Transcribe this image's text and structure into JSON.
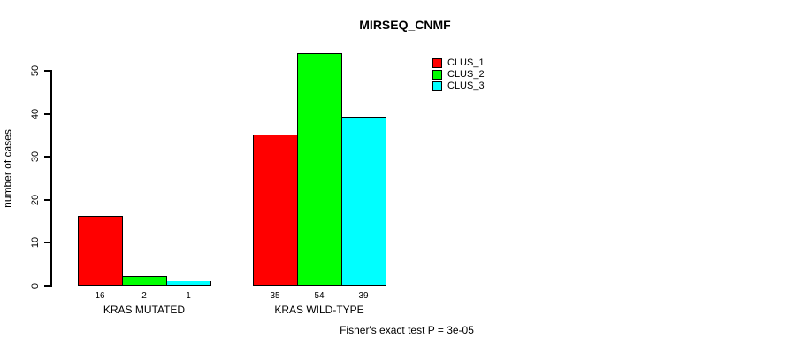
{
  "background": "#ffffff",
  "chart_data": {
    "type": "bar",
    "title": "MIRSEQ_CNMF",
    "xlabel": "",
    "ylabel": "number of cases",
    "categories": [
      "KRAS MUTATED",
      "KRAS WILD-TYPE"
    ],
    "series": [
      {
        "name": "CLUS_1",
        "color": "#ff0000",
        "values": [
          16,
          35
        ]
      },
      {
        "name": "CLUS_2",
        "color": "#00ff00",
        "values": [
          2,
          54
        ]
      },
      {
        "name": "CLUS_3",
        "color": "#00ffff",
        "values": [
          1,
          39
        ]
      }
    ],
    "bar_value_labels": [
      [
        16,
        2,
        1
      ],
      [
        35,
        54,
        39
      ]
    ],
    "ylim": [
      0,
      50
    ],
    "yticks": [
      0,
      10,
      20,
      30,
      40,
      50
    ],
    "grid": false,
    "legend_position": "right",
    "annotation": "Fisher's exact test P = 3e-05",
    "axis_color": "#000000"
  }
}
